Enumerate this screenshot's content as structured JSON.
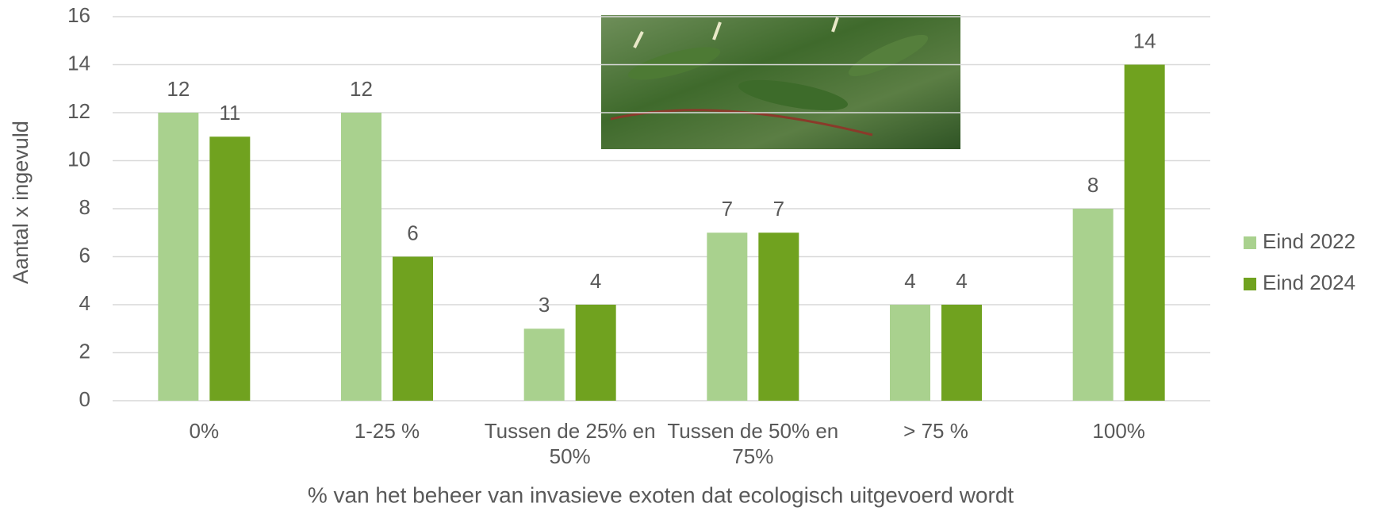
{
  "chart_data": {
    "type": "bar",
    "categories": [
      "0%",
      "1-25 %",
      "Tussen de 25% en 50%",
      "Tussen de 50% en 75%",
      "> 75 %",
      "100%"
    ],
    "series": [
      {
        "name": "Eind 2022",
        "color": "#a9d18e",
        "values": [
          12,
          12,
          3,
          7,
          4,
          8
        ]
      },
      {
        "name": "Eind 2024",
        "color": "#70a21f",
        "values": [
          11,
          6,
          4,
          7,
          4,
          14
        ]
      }
    ],
    "ylim": [
      0,
      16
    ],
    "yticks": [
      0,
      2,
      4,
      6,
      8,
      10,
      12,
      14,
      16
    ],
    "grid": true,
    "y_label": "Aantal x ingevuld",
    "x_label": "% van het beheer van invasieve exoten dat ecologisch uitgevoerd wordt",
    "legend": "right"
  }
}
